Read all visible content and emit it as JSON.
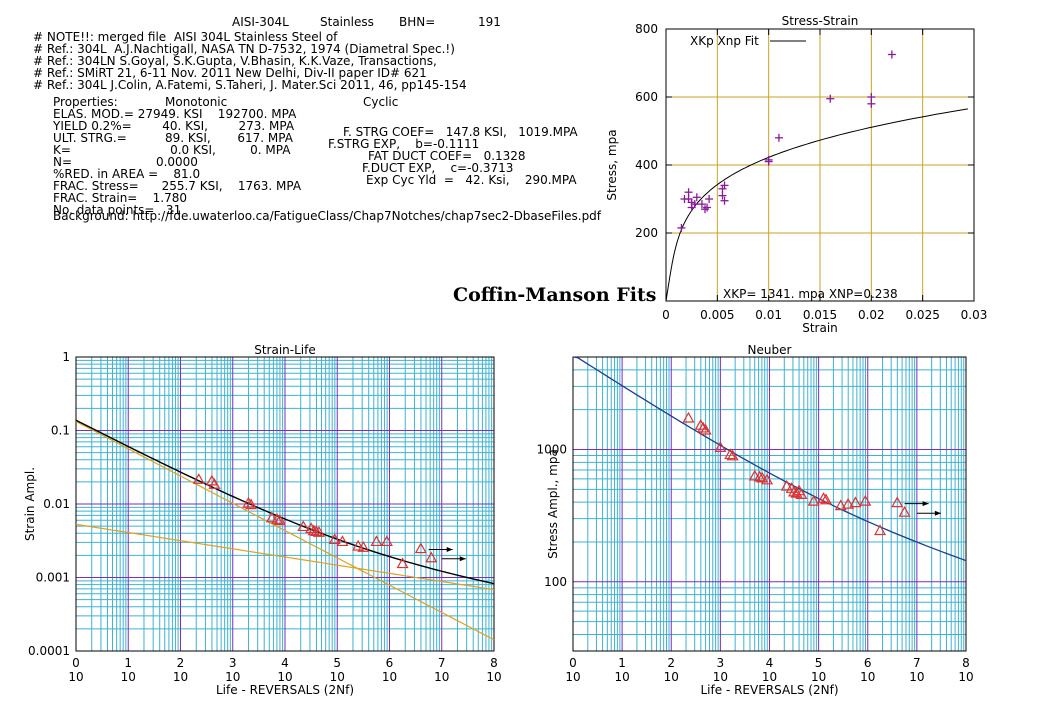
{
  "header": {
    "material": "AISI-304L",
    "type": "Stainless",
    "bhn_label": "BHN=",
    "bhn_value": "191"
  },
  "notes": [
    "# NOTE!!: merged file  AISI 304L Stainless Steel of",
    "# Ref.: 304L  A.J.Nachtigall, NASA TN D-7532, 1974 (Diametral Spec.!)",
    "# Ref.: 304LN S.Goyal, S.K.Gupta, V.Bhasin, K.K.Vaze, Transactions,",
    "# Ref.: SMiRT 21, 6-11 Nov. 2011 New Delhi, Div-II paper ID# 621",
    "# Ref.: 304L J.Colin, A.Fatemi, S.Taheri, J. Mater.Sci 2011, 46, pp145-154"
  ],
  "properties": {
    "heading": "Properties:",
    "monotonic_heading": "Monotonic",
    "cyclic_heading": "Cyclic",
    "rows_left": [
      "ELAS. MOD.= 27949. KSI    192700. MPA",
      "YIELD 0.2%=        40. KSI,        273. MPA",
      "ULT. STRG.=          89. KSI,       617. MPA",
      "K=                          0.0 KSI,         0. MPA",
      "N=                      0.0000",
      "%RED. in AREA =    81.0",
      "FRAC. Stress=      255.7 KSI,    1763. MPA",
      "FRAC. Strain=    1.780",
      "No. data points=   31"
    ],
    "rows_right": [
      "F. STRG COEF=   147.8 KSI,   1019.MPA",
      "F.STRG EXP,    b=-0.1111",
      "FAT DUCT COEF=   0.1328",
      "F.DUCT EXP,    c=-0.3713",
      "Exp Cyc Yld  =   42. Ksi,    290.MPA"
    ],
    "background": "Background: http://fde.uwaterloo.ca/FatigueClass/Chap7Notches/chap7sec2-DbaseFiles.pdf"
  },
  "coffin_manson_title": "Coffin-Manson Fits",
  "colors": {
    "grid_major": "#7b2fbe",
    "grid_minor": "#3fb2d0",
    "grid_stress": "#c9a227",
    "points_purple": "#8b1a9a",
    "points_red": "#e03030",
    "fit_orange": "#e0a020",
    "fit_black": "#000000",
    "neuber_curve": "#1a3f8f"
  },
  "chart_data": [
    {
      "type": "scatter",
      "title": "Stress-Strain",
      "xlabel": "Strain",
      "ylabel": "Stress, mpa",
      "xlim": [
        0,
        0.03
      ],
      "ylim": [
        0,
        800
      ],
      "xticks": [
        "0",
        "0.005",
        "0.01",
        "0.015",
        "0.02",
        "0.025",
        "0.03"
      ],
      "yticks": [
        "200",
        "400",
        "600",
        "800"
      ],
      "legend": "XKp Xnp Fit",
      "legend_position": "top-left",
      "annotation": "XKP= 1341. mpa     XNP=0.238",
      "fit": {
        "K": 1341,
        "n": 0.238,
        "E": 192700
      },
      "points": [
        [
          0.0015,
          215
        ],
        [
          0.0018,
          300
        ],
        [
          0.0022,
          320
        ],
        [
          0.0022,
          300
        ],
        [
          0.0025,
          290
        ],
        [
          0.0025,
          275
        ],
        [
          0.0028,
          285
        ],
        [
          0.003,
          305
        ],
        [
          0.0035,
          285
        ],
        [
          0.0038,
          270
        ],
        [
          0.004,
          275
        ],
        [
          0.0042,
          300
        ],
        [
          0.0055,
          330
        ],
        [
          0.0055,
          310
        ],
        [
          0.0057,
          340
        ],
        [
          0.0057,
          295
        ],
        [
          0.01,
          415
        ],
        [
          0.01,
          410
        ],
        [
          0.011,
          480
        ],
        [
          0.016,
          595
        ],
        [
          0.02,
          600
        ],
        [
          0.02,
          580
        ],
        [
          0.022,
          725
        ]
      ]
    },
    {
      "type": "scatter",
      "title": "Strain-Life",
      "xlabel": "Life - REVERSALS (2Nf)",
      "ylabel": "Strain   Ampl.",
      "xscale": "log",
      "yscale": "log",
      "xlim_exp": [
        0,
        8
      ],
      "ylim": [
        0.0001,
        1
      ],
      "xtick_base": "10",
      "xtick_exps": [
        "0",
        "1",
        "2",
        "3",
        "4",
        "5",
        "6",
        "7",
        "8"
      ],
      "yticks": [
        "0.0001",
        "0.001",
        "0.01",
        "0.1",
        "1"
      ],
      "points": [
        [
          2.35,
          0.021
        ],
        [
          2.6,
          0.02
        ],
        [
          2.65,
          0.018
        ],
        [
          3.3,
          0.01
        ],
        [
          3.35,
          0.0095
        ],
        [
          3.75,
          0.0063
        ],
        [
          3.85,
          0.006
        ],
        [
          3.9,
          0.0058
        ],
        [
          4.35,
          0.0048
        ],
        [
          4.5,
          0.0045
        ],
        [
          4.55,
          0.0042
        ],
        [
          4.6,
          0.0041
        ],
        [
          4.65,
          0.004
        ],
        [
          4.95,
          0.0032
        ],
        [
          5.1,
          0.003
        ],
        [
          5.4,
          0.0026
        ],
        [
          5.5,
          0.0025
        ],
        [
          5.75,
          0.003
        ],
        [
          5.95,
          0.003
        ],
        [
          6.25,
          0.0015
        ],
        [
          6.6,
          0.0024
        ],
        [
          6.8,
          0.0018
        ]
      ],
      "runouts": [
        [
          6.75,
          0.0024
        ],
        [
          7.0,
          0.0018
        ]
      ]
    },
    {
      "type": "scatter",
      "title": "Neuber",
      "xlabel": "Life - REVERSALS (2Nf)",
      "ylabel": "Stress Ampl., mpa",
      "xscale": "log",
      "yscale": "log",
      "xlim_exp": [
        0,
        8
      ],
      "ylim": [
        30,
        5000
      ],
      "xtick_base": "10",
      "xtick_exps": [
        "0",
        "1",
        "2",
        "3",
        "4",
        "5",
        "6",
        "7",
        "8"
      ],
      "yticks": [
        "100",
        "1000"
      ],
      "points": [
        [
          2.35,
          1700
        ],
        [
          2.6,
          1500
        ],
        [
          2.65,
          1430
        ],
        [
          2.7,
          1380
        ],
        [
          3.0,
          1020
        ],
        [
          3.2,
          900
        ],
        [
          3.25,
          880
        ],
        [
          3.7,
          620
        ],
        [
          3.8,
          610
        ],
        [
          3.85,
          600
        ],
        [
          3.95,
          580
        ],
        [
          4.35,
          520
        ],
        [
          4.45,
          500
        ],
        [
          4.5,
          470
        ],
        [
          4.55,
          460
        ],
        [
          4.6,
          480
        ],
        [
          4.65,
          450
        ],
        [
          4.9,
          400
        ],
        [
          5.1,
          420
        ],
        [
          5.15,
          410
        ],
        [
          5.45,
          370
        ],
        [
          5.6,
          380
        ],
        [
          5.75,
          390
        ],
        [
          5.95,
          400
        ],
        [
          6.25,
          240
        ],
        [
          6.6,
          390
        ],
        [
          6.75,
          330
        ]
      ],
      "runouts": [
        [
          6.75,
          390
        ],
        [
          7.0,
          330
        ]
      ]
    }
  ]
}
